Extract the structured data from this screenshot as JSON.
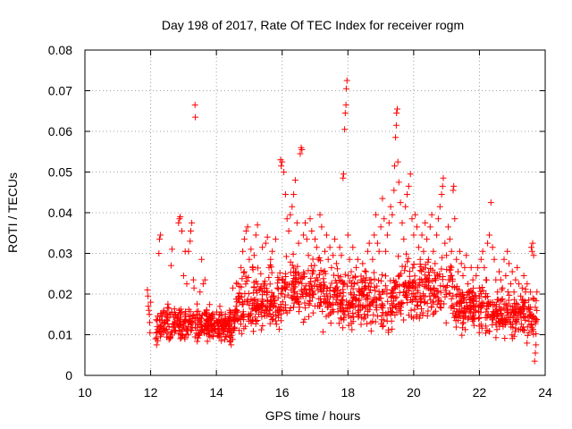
{
  "chart_data": {
    "type": "scatter",
    "title": "Day 198 of 2017, Rate Of TEC Index for receiver rogm",
    "xlabel": "GPS time / hours",
    "ylabel": "ROTI / TECUs",
    "xlim": [
      10,
      24
    ],
    "ylim": [
      0,
      0.08
    ],
    "xticks": [
      "10",
      "12",
      "14",
      "16",
      "18",
      "20",
      "22",
      "24"
    ],
    "yticks": [
      "0",
      "0.01",
      "0.02",
      "0.03",
      "0.04",
      "0.05",
      "0.06",
      "0.07",
      "0.08"
    ],
    "grid": true,
    "marker": "plus",
    "color": "#ff0000",
    "points": [
      [
        11.9,
        0.021
      ],
      [
        11.92,
        0.0195
      ],
      [
        11.93,
        0.017
      ],
      [
        11.95,
        0.016
      ],
      [
        11.96,
        0.015
      ],
      [
        11.97,
        0.013
      ],
      [
        11.98,
        0.0105
      ],
      [
        12.0,
        0.018
      ],
      [
        12.15,
        0.009
      ],
      [
        12.18,
        0.0075
      ],
      [
        12.2,
        0.012
      ],
      [
        12.22,
        0.0085
      ],
      [
        12.25,
        0.03
      ],
      [
        12.27,
        0.0335
      ],
      [
        12.3,
        0.0345
      ],
      [
        12.32,
        0.012
      ],
      [
        12.35,
        0.0145
      ],
      [
        12.4,
        0.016
      ],
      [
        12.45,
        0.011
      ],
      [
        12.5,
        0.0135
      ],
      [
        12.55,
        0.0165
      ],
      [
        12.6,
        0.0095
      ],
      [
        12.62,
        0.027
      ],
      [
        12.65,
        0.031
      ],
      [
        12.7,
        0.0125
      ],
      [
        12.75,
        0.015
      ],
      [
        12.8,
        0.014
      ],
      [
        12.85,
        0.0375
      ],
      [
        12.88,
        0.0385
      ],
      [
        12.9,
        0.039
      ],
      [
        12.95,
        0.0355
      ],
      [
        13.0,
        0.0245
      ],
      [
        13.05,
        0.0305
      ],
      [
        13.1,
        0.0225
      ],
      [
        13.15,
        0.0305
      ],
      [
        13.2,
        0.033
      ],
      [
        13.22,
        0.0355
      ],
      [
        13.25,
        0.0375
      ],
      [
        13.3,
        0.0235
      ],
      [
        13.32,
        0.0215
      ],
      [
        13.35,
        0.0665
      ],
      [
        13.36,
        0.0635
      ],
      [
        13.4,
        0.015
      ],
      [
        13.45,
        0.0125
      ],
      [
        13.5,
        0.0205
      ],
      [
        13.55,
        0.0285
      ],
      [
        13.6,
        0.0225
      ],
      [
        13.65,
        0.0235
      ],
      [
        13.7,
        0.0135
      ],
      [
        13.75,
        0.011
      ],
      [
        13.8,
        0.0145
      ],
      [
        13.85,
        0.0125
      ],
      [
        13.9,
        0.0095
      ],
      [
        13.95,
        0.0115
      ],
      [
        14.0,
        0.0135
      ],
      [
        14.05,
        0.0105
      ],
      [
        14.1,
        0.015
      ],
      [
        14.15,
        0.0085
      ],
      [
        14.2,
        0.0115
      ],
      [
        14.25,
        0.0125
      ],
      [
        14.3,
        0.0095
      ],
      [
        14.35,
        0.014
      ],
      [
        14.4,
        0.016
      ],
      [
        14.45,
        0.0075
      ],
      [
        14.5,
        0.0215
      ],
      [
        14.55,
        0.0155
      ],
      [
        14.6,
        0.017
      ],
      [
        14.65,
        0.0225
      ],
      [
        14.7,
        0.0195
      ],
      [
        14.75,
        0.0265
      ],
      [
        14.8,
        0.0305
      ],
      [
        14.85,
        0.0335
      ],
      [
        14.9,
        0.0355
      ],
      [
        14.95,
        0.0365
      ],
      [
        15.0,
        0.0285
      ],
      [
        15.05,
        0.031
      ],
      [
        15.1,
        0.0265
      ],
      [
        15.15,
        0.0295
      ],
      [
        15.2,
        0.0345
      ],
      [
        15.25,
        0.037
      ],
      [
        15.3,
        0.021
      ],
      [
        15.35,
        0.025
      ],
      [
        15.4,
        0.0315
      ],
      [
        15.45,
        0.0205
      ],
      [
        15.5,
        0.0325
      ],
      [
        15.55,
        0.034
      ],
      [
        15.6,
        0.0265
      ],
      [
        15.65,
        0.0285
      ],
      [
        15.7,
        0.0305
      ],
      [
        15.75,
        0.0195
      ],
      [
        15.8,
        0.0335
      ],
      [
        15.85,
        0.0215
      ],
      [
        15.9,
        0.0235
      ],
      [
        15.95,
        0.053
      ],
      [
        15.97,
        0.0515
      ],
      [
        16.0,
        0.0525
      ],
      [
        16.05,
        0.05
      ],
      [
        16.1,
        0.0445
      ],
      [
        16.15,
        0.0385
      ],
      [
        16.2,
        0.0355
      ],
      [
        16.25,
        0.0395
      ],
      [
        16.3,
        0.0415
      ],
      [
        16.35,
        0.0445
      ],
      [
        16.4,
        0.048
      ],
      [
        16.45,
        0.0375
      ],
      [
        16.5,
        0.0325
      ],
      [
        16.55,
        0.0545
      ],
      [
        16.58,
        0.056
      ],
      [
        16.6,
        0.0555
      ],
      [
        16.65,
        0.0345
      ],
      [
        16.7,
        0.0375
      ],
      [
        16.75,
        0.0335
      ],
      [
        16.8,
        0.0295
      ],
      [
        16.85,
        0.0385
      ],
      [
        16.9,
        0.0355
      ],
      [
        16.95,
        0.0255
      ],
      [
        17.0,
        0.0335
      ],
      [
        17.05,
        0.0315
      ],
      [
        17.1,
        0.0285
      ],
      [
        17.15,
        0.0395
      ],
      [
        17.2,
        0.0365
      ],
      [
        17.25,
        0.0255
      ],
      [
        17.3,
        0.0305
      ],
      [
        17.35,
        0.0345
      ],
      [
        17.4,
        0.0285
      ],
      [
        17.45,
        0.0315
      ],
      [
        17.5,
        0.0265
      ],
      [
        17.55,
        0.0295
      ],
      [
        17.6,
        0.0335
      ],
      [
        17.65,
        0.0275
      ],
      [
        17.7,
        0.0245
      ],
      [
        17.75,
        0.0315
      ],
      [
        17.8,
        0.0295
      ],
      [
        17.85,
        0.0485
      ],
      [
        17.87,
        0.0495
      ],
      [
        17.9,
        0.0605
      ],
      [
        17.92,
        0.0645
      ],
      [
        17.94,
        0.0665
      ],
      [
        17.95,
        0.0705
      ],
      [
        17.97,
        0.0725
      ],
      [
        18.0,
        0.0345
      ],
      [
        18.05,
        0.0285
      ],
      [
        18.1,
        0.0255
      ],
      [
        18.15,
        0.0315
      ],
      [
        18.2,
        0.0225
      ],
      [
        18.25,
        0.0265
      ],
      [
        18.3,
        0.0285
      ],
      [
        18.35,
        0.0205
      ],
      [
        18.4,
        0.0235
      ],
      [
        18.45,
        0.0275
      ],
      [
        18.5,
        0.0215
      ],
      [
        18.55,
        0.0255
      ],
      [
        18.6,
        0.0305
      ],
      [
        18.65,
        0.0325
      ],
      [
        18.7,
        0.0235
      ],
      [
        18.75,
        0.0285
      ],
      [
        18.8,
        0.0345
      ],
      [
        18.85,
        0.0395
      ],
      [
        18.9,
        0.0325
      ],
      [
        18.95,
        0.0305
      ],
      [
        19.0,
        0.0365
      ],
      [
        19.05,
        0.0435
      ],
      [
        19.1,
        0.0385
      ],
      [
        19.15,
        0.0305
      ],
      [
        19.2,
        0.0345
      ],
      [
        19.25,
        0.0375
      ],
      [
        19.3,
        0.0415
      ],
      [
        19.35,
        0.0395
      ],
      [
        19.4,
        0.0455
      ],
      [
        19.42,
        0.0515
      ],
      [
        19.45,
        0.0585
      ],
      [
        19.47,
        0.0615
      ],
      [
        19.48,
        0.0645
      ],
      [
        19.5,
        0.0655
      ],
      [
        19.52,
        0.0525
      ],
      [
        19.55,
        0.0475
      ],
      [
        19.6,
        0.0425
      ],
      [
        19.65,
        0.0375
      ],
      [
        19.7,
        0.0335
      ],
      [
        19.75,
        0.0415
      ],
      [
        19.8,
        0.0445
      ],
      [
        19.85,
        0.0465
      ],
      [
        19.9,
        0.0495
      ],
      [
        19.95,
        0.0385
      ],
      [
        20.0,
        0.0345
      ],
      [
        20.05,
        0.0395
      ],
      [
        20.1,
        0.0365
      ],
      [
        20.15,
        0.0315
      ],
      [
        20.2,
        0.0285
      ],
      [
        20.25,
        0.0345
      ],
      [
        20.3,
        0.0305
      ],
      [
        20.35,
        0.0375
      ],
      [
        20.4,
        0.0335
      ],
      [
        20.45,
        0.0285
      ],
      [
        20.5,
        0.0365
      ],
      [
        20.55,
        0.0395
      ],
      [
        20.6,
        0.0305
      ],
      [
        20.65,
        0.0275
      ],
      [
        20.7,
        0.0345
      ],
      [
        20.75,
        0.0385
      ],
      [
        20.8,
        0.0415
      ],
      [
        20.85,
        0.0445
      ],
      [
        20.88,
        0.0465
      ],
      [
        20.9,
        0.0485
      ],
      [
        20.95,
        0.0325
      ],
      [
        21.0,
        0.0295
      ],
      [
        21.05,
        0.0365
      ],
      [
        21.1,
        0.0335
      ],
      [
        21.15,
        0.0305
      ],
      [
        21.2,
        0.0455
      ],
      [
        21.22,
        0.0465
      ],
      [
        21.25,
        0.0385
      ],
      [
        21.3,
        0.0285
      ],
      [
        21.35,
        0.0255
      ],
      [
        21.4,
        0.0305
      ],
      [
        21.45,
        0.0275
      ],
      [
        21.5,
        0.0245
      ],
      [
        21.55,
        0.0265
      ],
      [
        21.6,
        0.0295
      ],
      [
        21.65,
        0.0225
      ],
      [
        21.7,
        0.0205
      ],
      [
        21.75,
        0.0265
      ],
      [
        21.8,
        0.0235
      ],
      [
        21.85,
        0.0195
      ],
      [
        21.9,
        0.0245
      ],
      [
        21.95,
        0.0265
      ],
      [
        22.0,
        0.0215
      ],
      [
        22.05,
        0.0285
      ],
      [
        22.1,
        0.0305
      ],
      [
        22.15,
        0.0265
      ],
      [
        22.2,
        0.0235
      ],
      [
        22.25,
        0.0325
      ],
      [
        22.3,
        0.0345
      ],
      [
        22.35,
        0.0425
      ],
      [
        22.4,
        0.0315
      ],
      [
        22.45,
        0.0285
      ],
      [
        22.5,
        0.0235
      ],
      [
        22.55,
        0.0205
      ],
      [
        22.6,
        0.0255
      ],
      [
        22.65,
        0.0235
      ],
      [
        22.7,
        0.0215
      ],
      [
        22.75,
        0.0285
      ],
      [
        22.8,
        0.0245
      ],
      [
        22.85,
        0.0305
      ],
      [
        22.9,
        0.0275
      ],
      [
        22.95,
        0.0225
      ],
      [
        23.0,
        0.0255
      ],
      [
        23.05,
        0.0205
      ],
      [
        23.1,
        0.0235
      ],
      [
        23.15,
        0.0265
      ],
      [
        23.2,
        0.0225
      ],
      [
        23.25,
        0.0195
      ],
      [
        23.3,
        0.0215
      ],
      [
        23.35,
        0.0245
      ],
      [
        23.4,
        0.0205
      ],
      [
        23.45,
        0.0225
      ],
      [
        23.5,
        0.0185
      ],
      [
        23.55,
        0.0205
      ],
      [
        23.58,
        0.0315
      ],
      [
        23.6,
        0.0305
      ],
      [
        23.62,
        0.0325
      ],
      [
        23.65,
        0.0295
      ],
      [
        23.68,
        0.0035
      ],
      [
        23.7,
        0.0055
      ],
      [
        23.72,
        0.0075
      ],
      [
        23.75,
        0.0205
      ]
    ]
  }
}
